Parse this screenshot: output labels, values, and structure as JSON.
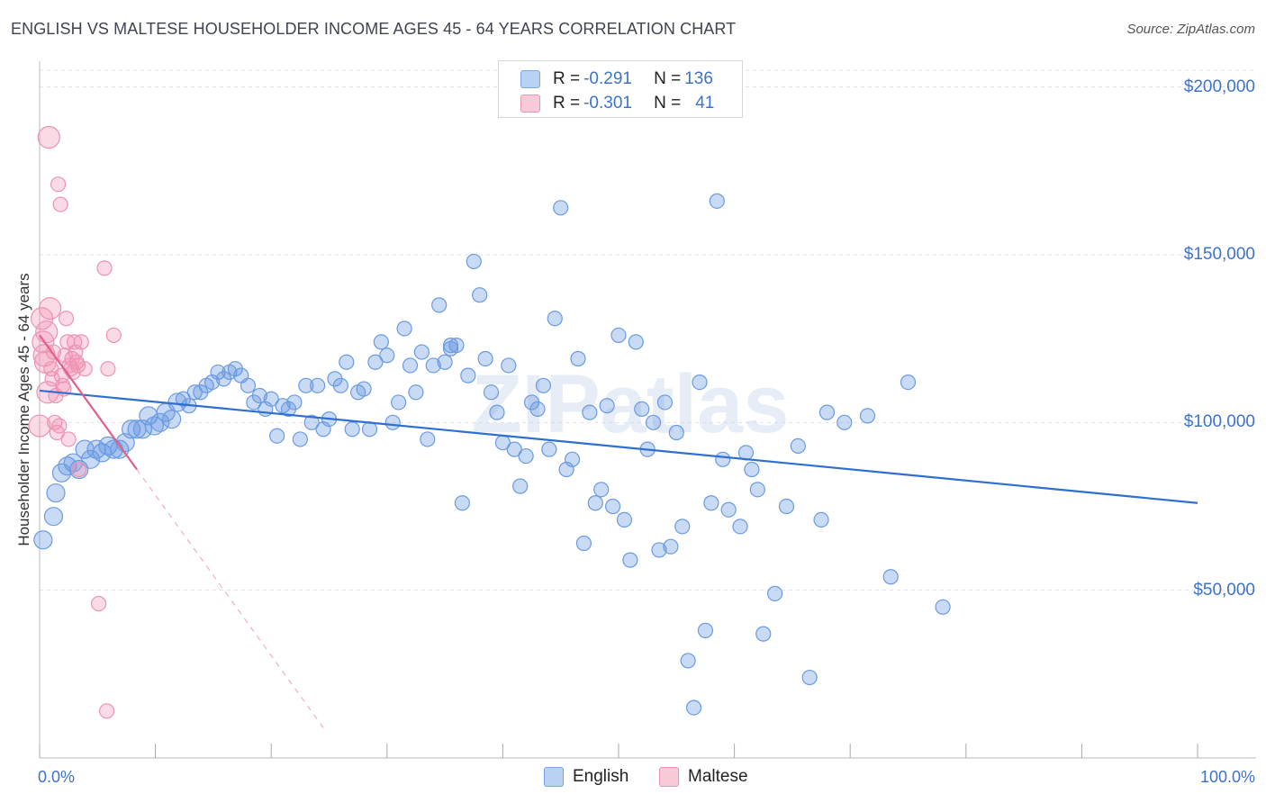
{
  "title": "ENGLISH VS MALTESE HOUSEHOLDER INCOME AGES 45 - 64 YEARS CORRELATION CHART",
  "source": "Source: ZipAtlas.com",
  "legend": {
    "rows": [
      {
        "r_label": "R = ",
        "r_value": "-0.291",
        "n_label": "N = ",
        "n_value": "136"
      },
      {
        "r_label": "R = ",
        "r_value": "-0.301",
        "n_label": "N = ",
        "n_value": "41"
      }
    ]
  },
  "watermark": "ZIPatlas",
  "colors": {
    "english_fill": "rgba(100,150,225,0.35)",
    "english_stroke": "#6a9be0",
    "english_line": "#2f6fd0",
    "maltese_fill": "rgba(240,150,180,0.35)",
    "maltese_stroke": "#ec94b2",
    "maltese_line": "#e0608a",
    "axis_text": "#3d73c9"
  },
  "chart_data": {
    "type": "scatter",
    "title": "ENGLISH VS MALTESE HOUSEHOLDER INCOME AGES 45 - 64 YEARS CORRELATION CHART",
    "xlabel": "",
    "ylabel": "Householder Income Ages 45 - 64 years",
    "xlim": [
      0,
      100
    ],
    "ylim": [
      0,
      205000
    ],
    "x_tick_labels": [
      "0.0%",
      "100.0%"
    ],
    "y_tick_labels": [
      "$50,000",
      "$100,000",
      "$150,000",
      "$200,000"
    ],
    "y_ticks": [
      50000,
      100000,
      150000,
      200000
    ],
    "grid": true,
    "legend_position": "bottom",
    "series": [
      {
        "name": "English",
        "r": -0.291,
        "n": 136,
        "trend": {
          "x": [
            0,
            100
          ],
          "y": [
            109500,
            76000
          ]
        },
        "points": [
          [
            0.3,
            65000
          ],
          [
            1.2,
            72000
          ],
          [
            1.4,
            79000
          ],
          [
            1.9,
            85000
          ],
          [
            2.4,
            87000
          ],
          [
            2.9,
            88000
          ],
          [
            3.4,
            86000
          ],
          [
            3.9,
            92000
          ],
          [
            4.4,
            89000
          ],
          [
            4.9,
            92000
          ],
          [
            5.4,
            91000
          ],
          [
            5.9,
            93000
          ],
          [
            6.4,
            92000
          ],
          [
            6.9,
            92000
          ],
          [
            7.4,
            94000
          ],
          [
            7.9,
            98000
          ],
          [
            8.4,
            98000
          ],
          [
            8.9,
            98000
          ],
          [
            9.4,
            102000
          ],
          [
            9.9,
            99000
          ],
          [
            10.4,
            100000
          ],
          [
            10.9,
            103000
          ],
          [
            11.4,
            101000
          ],
          [
            11.9,
            106000
          ],
          [
            12.4,
            107000
          ],
          [
            12.9,
            105000
          ],
          [
            13.4,
            109000
          ],
          [
            13.9,
            109000
          ],
          [
            14.4,
            111000
          ],
          [
            14.9,
            112000
          ],
          [
            15.4,
            115000
          ],
          [
            15.9,
            113000
          ],
          [
            16.4,
            115000
          ],
          [
            16.9,
            116000
          ],
          [
            17.4,
            114000
          ],
          [
            18.0,
            111000
          ],
          [
            18.5,
            106000
          ],
          [
            19.0,
            108000
          ],
          [
            19.5,
            104000
          ],
          [
            20.0,
            107000
          ],
          [
            20.5,
            96000
          ],
          [
            21.0,
            105000
          ],
          [
            21.5,
            104000
          ],
          [
            22.0,
            106000
          ],
          [
            22.5,
            95000
          ],
          [
            23.0,
            111000
          ],
          [
            23.5,
            100000
          ],
          [
            24.0,
            111000
          ],
          [
            24.5,
            98000
          ],
          [
            25.0,
            101000
          ],
          [
            25.5,
            113000
          ],
          [
            26.0,
            111000
          ],
          [
            26.5,
            118000
          ],
          [
            27.0,
            98000
          ],
          [
            27.5,
            109000
          ],
          [
            28.0,
            110000
          ],
          [
            28.5,
            98000
          ],
          [
            29.0,
            118000
          ],
          [
            29.5,
            124000
          ],
          [
            30.0,
            120000
          ],
          [
            30.5,
            100000
          ],
          [
            31.0,
            106000
          ],
          [
            31.5,
            128000
          ],
          [
            32.0,
            117000
          ],
          [
            32.5,
            109000
          ],
          [
            33.0,
            121000
          ],
          [
            33.5,
            95000
          ],
          [
            34.0,
            117000
          ],
          [
            34.5,
            135000
          ],
          [
            35.0,
            118000
          ],
          [
            35.5,
            123000
          ],
          [
            36.0,
            123000
          ],
          [
            36.5,
            76000
          ],
          [
            37.0,
            114000
          ],
          [
            37.5,
            148000
          ],
          [
            38.0,
            138000
          ],
          [
            38.5,
            119000
          ],
          [
            39.0,
            109000
          ],
          [
            39.5,
            103000
          ],
          [
            40.0,
            94000
          ],
          [
            40.5,
            117000
          ],
          [
            41.0,
            92000
          ],
          [
            41.5,
            81000
          ],
          [
            42.0,
            90000
          ],
          [
            42.5,
            106000
          ],
          [
            43.0,
            104000
          ],
          [
            43.5,
            111000
          ],
          [
            44.0,
            92000
          ],
          [
            44.5,
            131000
          ],
          [
            45.0,
            164000
          ],
          [
            45.5,
            86000
          ],
          [
            46.0,
            89000
          ],
          [
            46.5,
            119000
          ],
          [
            47.0,
            64000
          ],
          [
            47.5,
            103000
          ],
          [
            48.0,
            76000
          ],
          [
            48.5,
            80000
          ],
          [
            49.0,
            105000
          ],
          [
            49.5,
            75000
          ],
          [
            50.0,
            126000
          ],
          [
            50.5,
            71000
          ],
          [
            51.0,
            59000
          ],
          [
            51.5,
            124000
          ],
          [
            52.0,
            104000
          ],
          [
            52.5,
            92000
          ],
          [
            53.0,
            100000
          ],
          [
            53.5,
            62000
          ],
          [
            54.0,
            106000
          ],
          [
            54.5,
            63000
          ],
          [
            55.0,
            97000
          ],
          [
            55.5,
            69000
          ],
          [
            56.0,
            29000
          ],
          [
            56.5,
            15000
          ],
          [
            57.0,
            112000
          ],
          [
            57.5,
            38000
          ],
          [
            58.0,
            76000
          ],
          [
            58.5,
            166000
          ],
          [
            59.0,
            89000
          ],
          [
            59.5,
            74000
          ],
          [
            60.5,
            69000
          ],
          [
            61.0,
            91000
          ],
          [
            61.5,
            86000
          ],
          [
            62.0,
            80000
          ],
          [
            62.5,
            37000
          ],
          [
            63.5,
            49000
          ],
          [
            64.5,
            75000
          ],
          [
            65.5,
            93000
          ],
          [
            66.5,
            24000
          ],
          [
            67.5,
            71000
          ],
          [
            68.0,
            103000
          ],
          [
            69.5,
            100000
          ],
          [
            71.5,
            102000
          ],
          [
            73.5,
            54000
          ],
          [
            75.0,
            112000
          ],
          [
            78.0,
            45000
          ],
          [
            35.5,
            122000
          ]
        ]
      },
      {
        "name": "Maltese",
        "r": -0.301,
        "n": 41,
        "trend": {
          "x": [
            0,
            8.4
          ],
          "y": [
            126000,
            86000
          ]
        },
        "trend_dashed": {
          "x": [
            8.4,
            24.5
          ],
          "y": [
            86000,
            9000
          ]
        },
        "points": [
          [
            0.0,
            99000
          ],
          [
            0.2,
            131000
          ],
          [
            0.3,
            124000
          ],
          [
            0.4,
            120000
          ],
          [
            0.5,
            118000
          ],
          [
            0.6,
            127000
          ],
          [
            0.7,
            109000
          ],
          [
            0.8,
            185000
          ],
          [
            0.9,
            134000
          ],
          [
            1.0,
            116000
          ],
          [
            1.1,
            113000
          ],
          [
            1.2,
            121000
          ],
          [
            1.3,
            100000
          ],
          [
            1.4,
            108000
          ],
          [
            1.5,
            97000
          ],
          [
            1.6,
            171000
          ],
          [
            1.7,
            99000
          ],
          [
            1.8,
            165000
          ],
          [
            1.9,
            114000
          ],
          [
            2.0,
            111000
          ],
          [
            2.1,
            110000
          ],
          [
            2.2,
            120000
          ],
          [
            2.3,
            131000
          ],
          [
            2.4,
            124000
          ],
          [
            2.5,
            95000
          ],
          [
            2.6,
            117000
          ],
          [
            2.7,
            116000
          ],
          [
            2.8,
            119000
          ],
          [
            2.9,
            115000
          ],
          [
            3.0,
            124000
          ],
          [
            3.1,
            121000
          ],
          [
            3.2,
            118000
          ],
          [
            3.3,
            117000
          ],
          [
            3.4,
            86000
          ],
          [
            3.6,
            124000
          ],
          [
            3.9,
            116000
          ],
          [
            5.1,
            46000
          ],
          [
            5.6,
            146000
          ],
          [
            5.8,
            14000
          ],
          [
            5.9,
            116000
          ],
          [
            6.4,
            126000
          ]
        ]
      }
    ]
  }
}
